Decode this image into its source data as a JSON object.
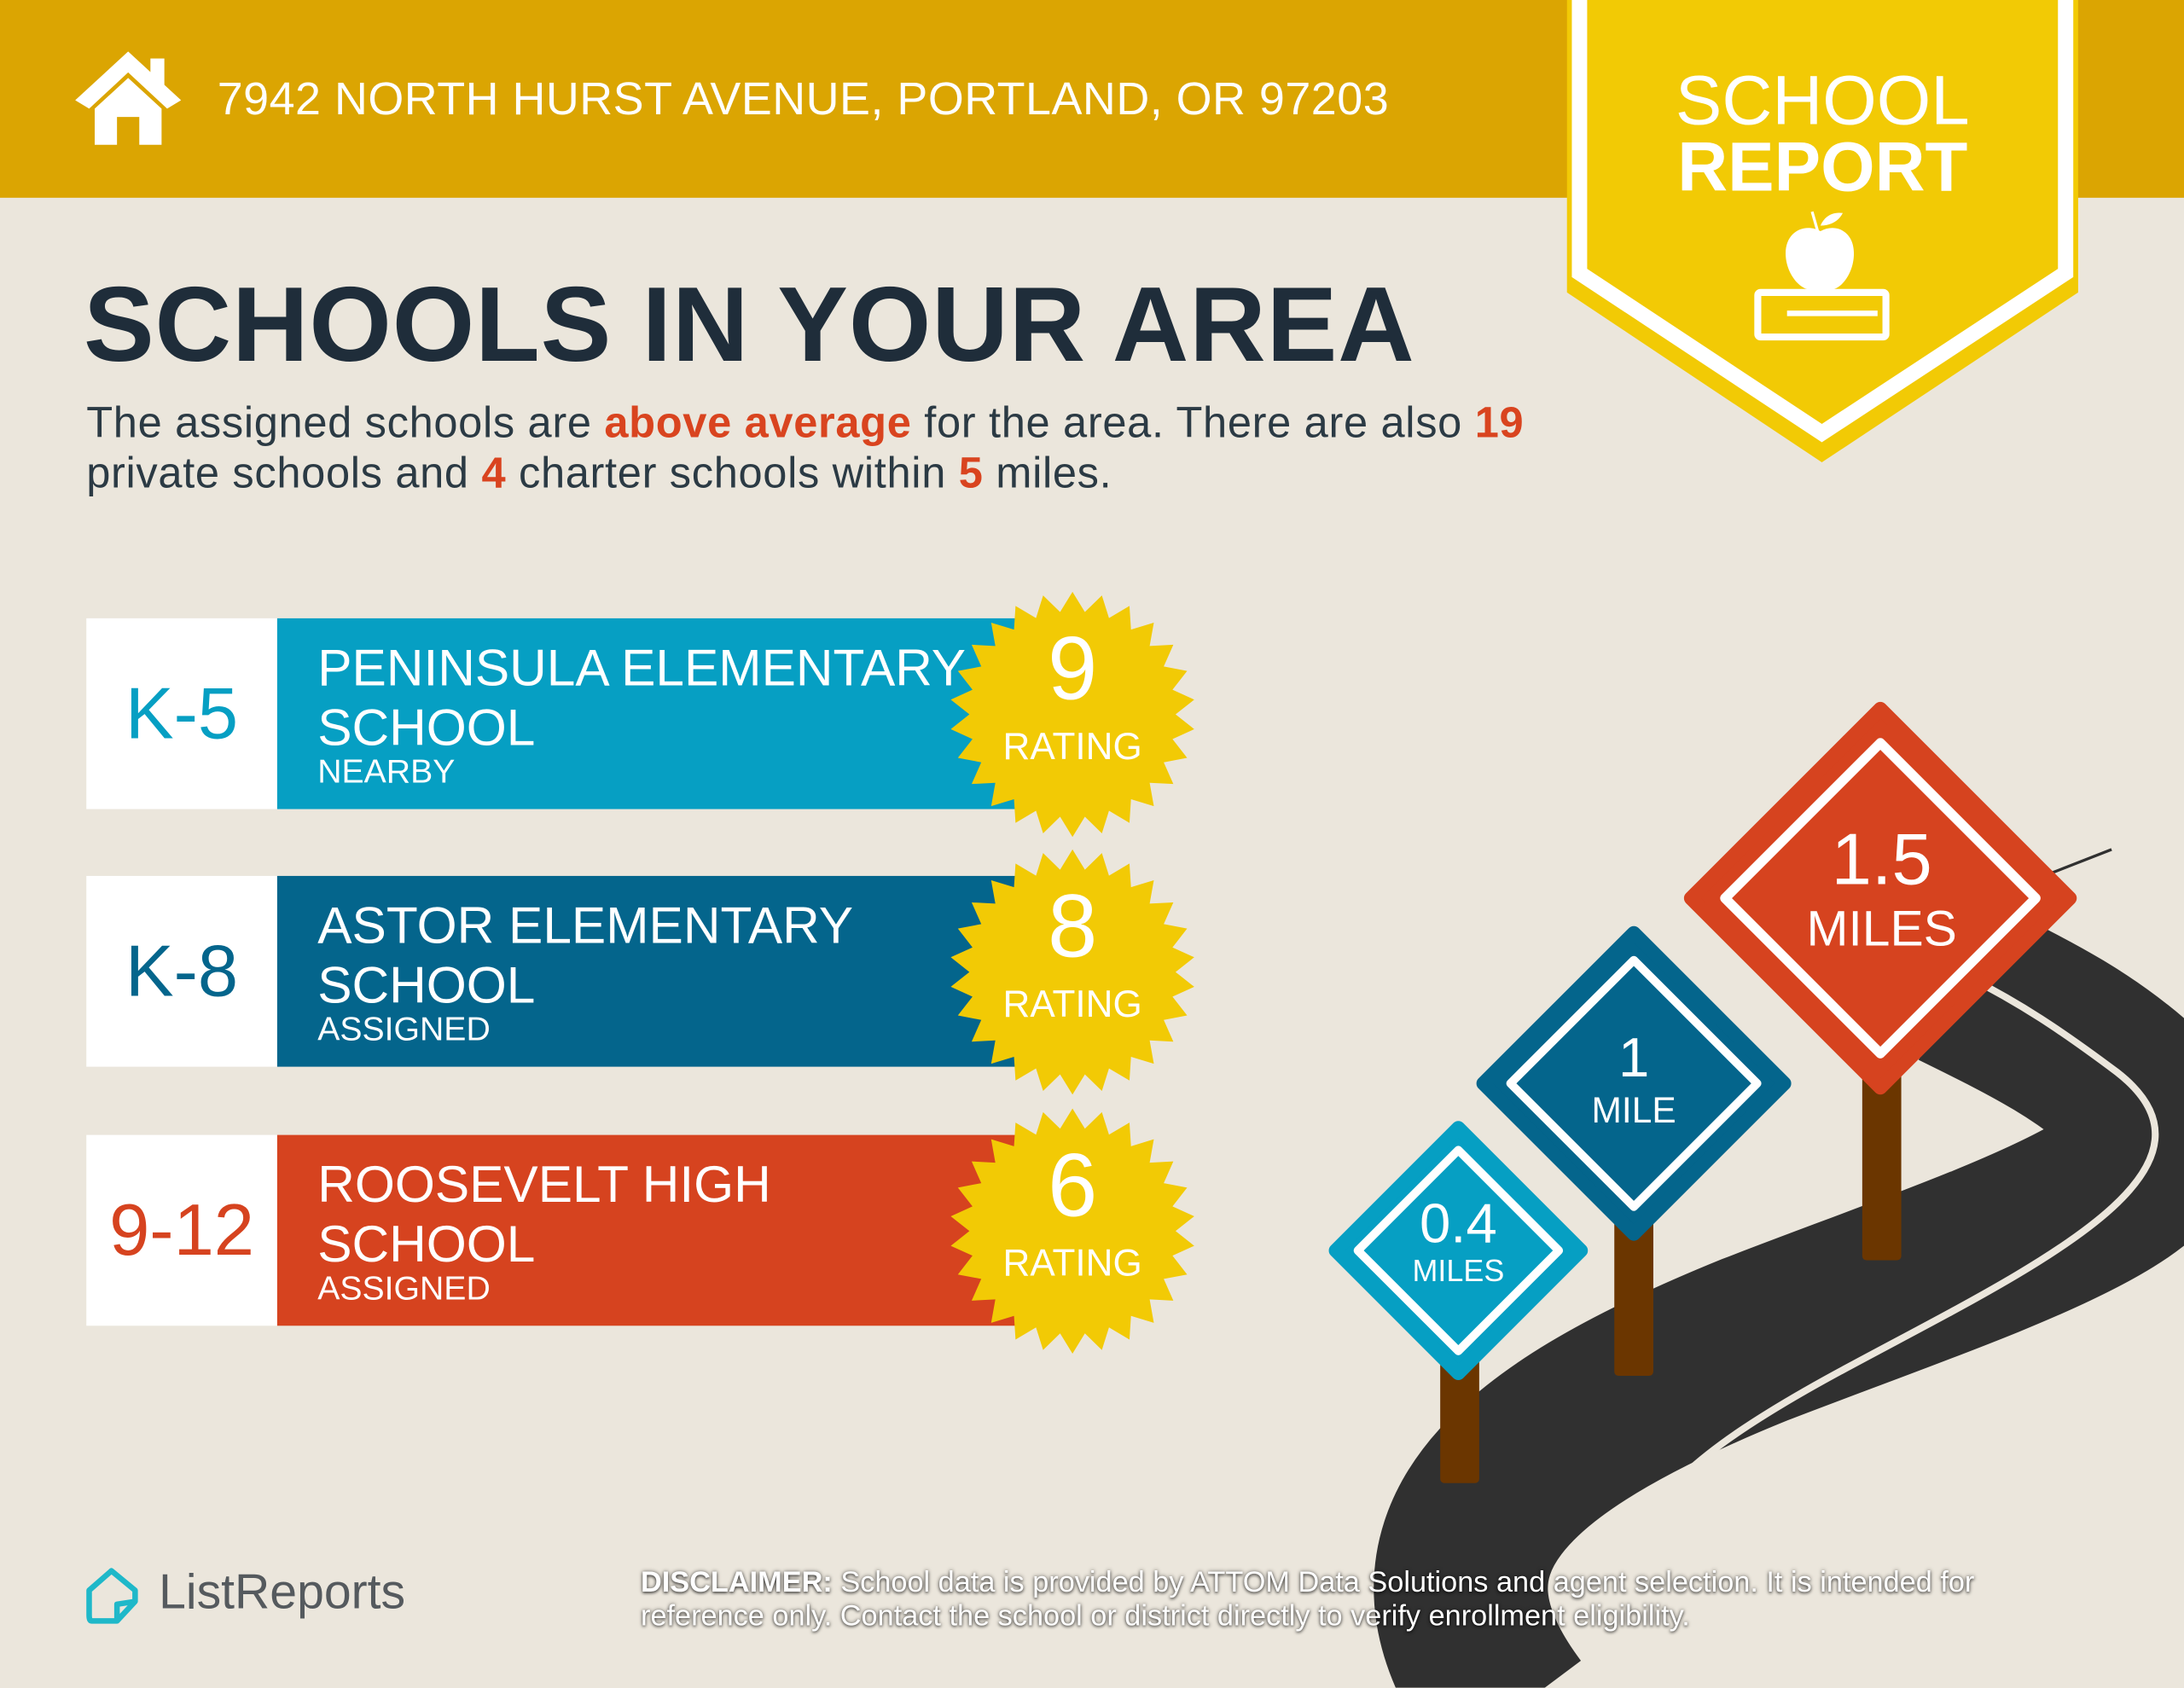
{
  "header": {
    "address": "7942 NORTH HURST AVENUE, PORTLAND, OR 97203",
    "icon": "house-icon"
  },
  "badge": {
    "line1": "SCHOOL",
    "line2": "REPORT",
    "icon": "apple-on-book-icon"
  },
  "main": {
    "title": "SCHOOLS IN YOUR AREA",
    "subtitle": {
      "p1": "The assigned schools are ",
      "highlight": "above average",
      "p2": " for the area. There are also ",
      "private_count": "19",
      "p3": " private schools and ",
      "charter_count": "4",
      "p4": " charter schools within ",
      "radius": "5",
      "p5": " miles."
    }
  },
  "schools": [
    {
      "grades": "K-5",
      "name": "PENINSULA ELEMENTARY SCHOOL",
      "status": "NEARBY",
      "rating": "9",
      "rating_label": "RATING",
      "color": "#069fc3"
    },
    {
      "grades": "K-8",
      "name": "ASTOR ELEMENTARY SCHOOL",
      "status": "ASSIGNED",
      "rating": "8",
      "rating_label": "RATING",
      "color": "#04658c"
    },
    {
      "grades": "9-12",
      "name": "ROOSEVELT HIGH SCHOOL",
      "status": "ASSIGNED",
      "rating": "6",
      "rating_label": "RATING",
      "color": "#d6431f"
    }
  ],
  "signs": [
    {
      "value": "0.4",
      "unit": "MILES",
      "color": "#069fc3"
    },
    {
      "value": "1",
      "unit": "MILE",
      "color": "#04658c"
    },
    {
      "value": "1.5",
      "unit": "MILES",
      "color": "#d6431f"
    }
  ],
  "footer": {
    "logo": "ListReports",
    "disclaimer_label": "DISCLAIMER:",
    "disclaimer_text": " School data is provided by ATTOM Data Solutions and agent selection. It is intended for reference only. Contact the school or district directly to verify enrollment eligibility."
  },
  "colors": {
    "header": "#dba502",
    "badge": "#f2ca05",
    "background": "#ebe6dc",
    "accent": "#d9441f",
    "title": "#1f2d3a"
  }
}
